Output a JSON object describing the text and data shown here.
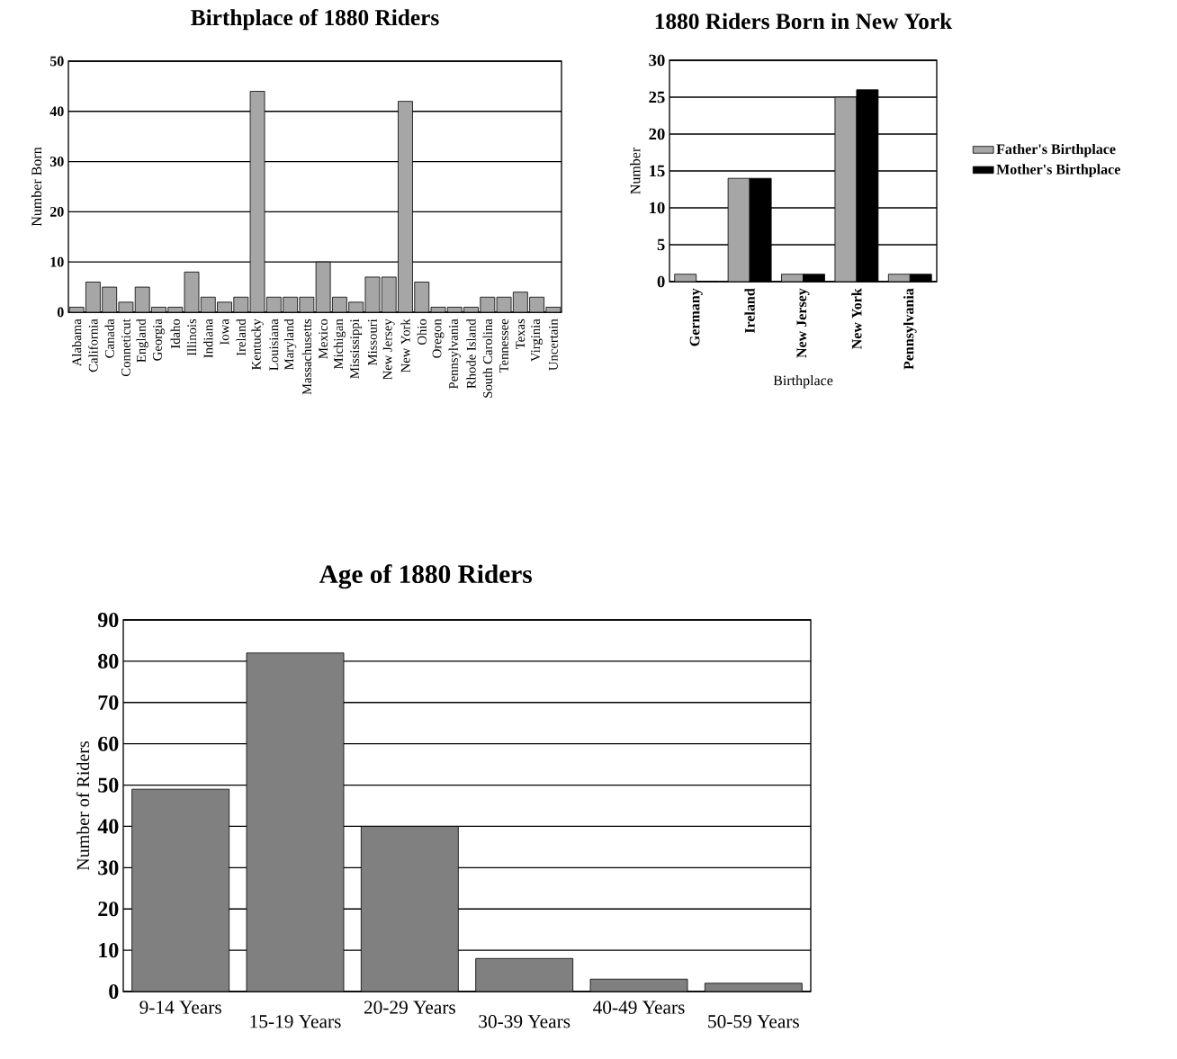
{
  "chart_data": [
    {
      "type": "bar",
      "title": "Birthplace of 1880 Riders",
      "ylabel": "Number Born",
      "categories": [
        "Alabama",
        "California",
        "Canada",
        "Conneticut",
        "England",
        "Georgia",
        "Idaho",
        "Illinois",
        "Indiana",
        "Iowa",
        "Ireland",
        "Kentucky",
        "Louisiana",
        "Maryland",
        "Massachusetts",
        "Mexico",
        "Michigan",
        "Mississippi",
        "Missouri",
        "New Jersey",
        "New York",
        "Ohio",
        "Oregon",
        "Pennsylvania",
        "Rhode Island",
        "South Carolina",
        "Tennessee",
        "Texas",
        "Virginia",
        "Uncertain"
      ],
      "values": [
        1,
        6,
        5,
        2,
        5,
        1,
        1,
        8,
        3,
        2,
        3,
        44,
        3,
        3,
        3,
        10,
        3,
        2,
        7,
        7,
        42,
        6,
        1,
        1,
        1,
        3,
        3,
        4,
        3,
        1
      ],
      "color": "#a6a6a6",
      "ylim": [
        0,
        50
      ],
      "yticks": [
        0,
        10,
        20,
        30,
        40,
        50
      ],
      "grid": "y"
    },
    {
      "type": "bar",
      "title": "1880 Riders Born in New York",
      "xlabel": "Birthplace",
      "ylabel": "Number",
      "categories": [
        "Germany",
        "Ireland",
        "New Jersey",
        "New York",
        "Pennsylvania"
      ],
      "series": [
        {
          "name": "Father's Birthplace",
          "color": "#a6a6a6",
          "values": [
            1,
            14,
            1,
            25,
            1
          ]
        },
        {
          "name": "Mother's Birthplace",
          "color": "#000000",
          "values": [
            0,
            14,
            1,
            26,
            1
          ]
        }
      ],
      "ylim": [
        0,
        30
      ],
      "yticks": [
        0,
        5,
        10,
        15,
        20,
        25,
        30
      ],
      "grid": "y",
      "legend": "right"
    },
    {
      "type": "bar",
      "title": "Age of 1880 Riders",
      "ylabel": "Number of Riders",
      "categories": [
        "9-14 Years",
        "15-19 Years",
        "20-29 Years",
        "30-39 Years",
        "40-49 Years",
        "50-59 Years"
      ],
      "values": [
        49,
        82,
        40,
        8,
        3,
        2
      ],
      "color": "#808080",
      "ylim": [
        0,
        90
      ],
      "yticks": [
        0,
        10,
        20,
        30,
        40,
        50,
        60,
        70,
        80,
        90
      ],
      "grid": "y"
    }
  ]
}
